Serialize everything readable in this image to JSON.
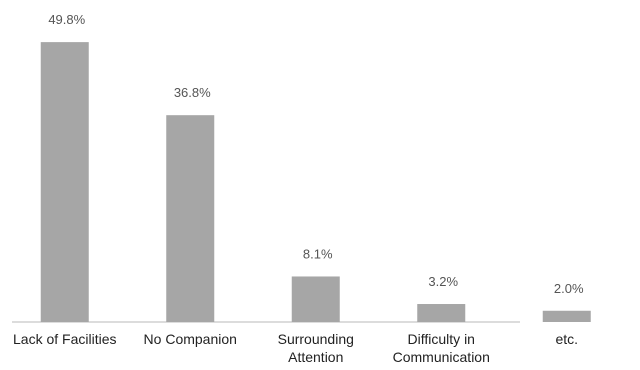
{
  "chart_data": {
    "type": "bar",
    "categories": [
      "Lack of Facilities",
      "No Companion",
      "Surrounding Attention",
      "Difficulty in Communication",
      "etc."
    ],
    "values": [
      49.8,
      36.8,
      8.1,
      3.2,
      2.0
    ],
    "value_labels": [
      "49.8%",
      "36.8%",
      "8.1%",
      "3.2%",
      "2.0%"
    ],
    "color": "#a6a6a6"
  }
}
